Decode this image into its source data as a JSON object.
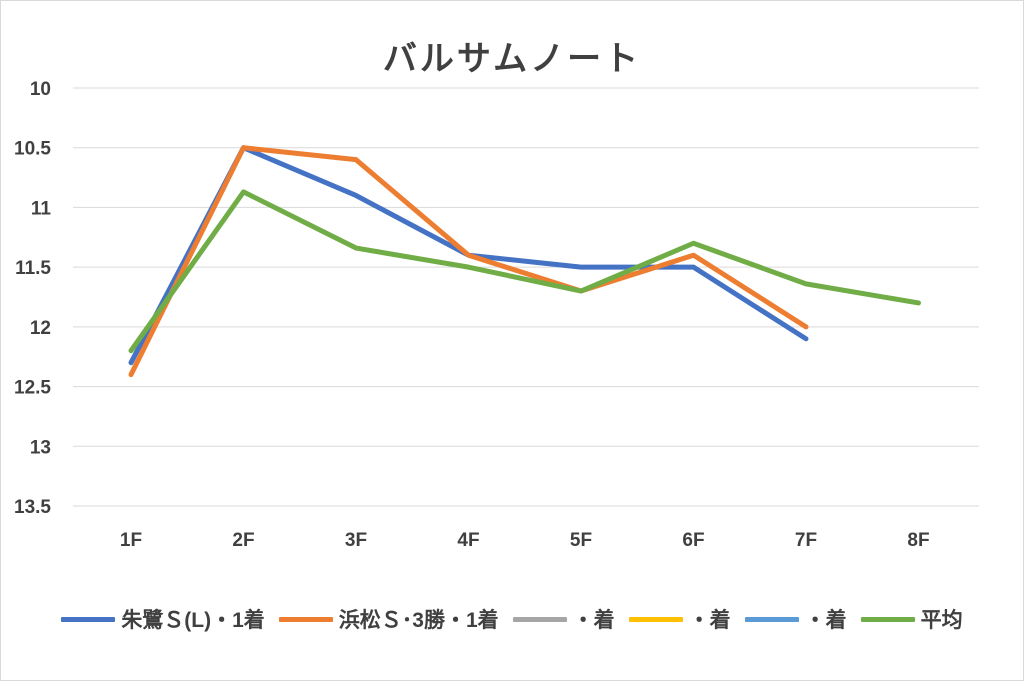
{
  "chart_data": {
    "type": "line",
    "title": "バルサムノート",
    "categories": [
      "1F",
      "2F",
      "3F",
      "4F",
      "5F",
      "6F",
      "7F",
      "8F"
    ],
    "y_axis": {
      "reversed": true,
      "ylim": [
        10,
        13.5
      ],
      "ticks": [
        10,
        10.5,
        11,
        11.5,
        12,
        12.5,
        13,
        13.5
      ],
      "tick_labels": [
        "10",
        "10.5",
        "11",
        "11.5",
        "12",
        "12.5",
        "13",
        "13.5"
      ]
    },
    "grid": true,
    "legend_position": "bottom",
    "series": [
      {
        "name": "朱鷺Ｓ(L)・1着",
        "color": "#4472C4",
        "values": [
          12.3,
          10.5,
          10.9,
          11.4,
          11.5,
          11.5,
          12.1,
          null
        ]
      },
      {
        "name": "浜松Ｓ･3勝・1着",
        "color": "#ED7D31",
        "values": [
          12.4,
          10.5,
          10.6,
          11.4,
          11.7,
          11.4,
          12.0,
          null
        ]
      },
      {
        "name": "・着",
        "color": "#A5A5A5",
        "values": [
          null,
          null,
          null,
          null,
          null,
          null,
          null,
          null
        ]
      },
      {
        "name": "・着",
        "color": "#FFC000",
        "values": [
          null,
          null,
          null,
          null,
          null,
          null,
          null,
          null
        ]
      },
      {
        "name": "・着",
        "color": "#5B9BD5",
        "values": [
          null,
          null,
          null,
          null,
          null,
          null,
          null,
          null
        ]
      },
      {
        "name": "平均",
        "color": "#70AD47",
        "values": [
          12.2,
          10.87,
          11.34,
          11.5,
          11.7,
          11.3,
          11.64,
          11.8
        ]
      }
    ]
  }
}
